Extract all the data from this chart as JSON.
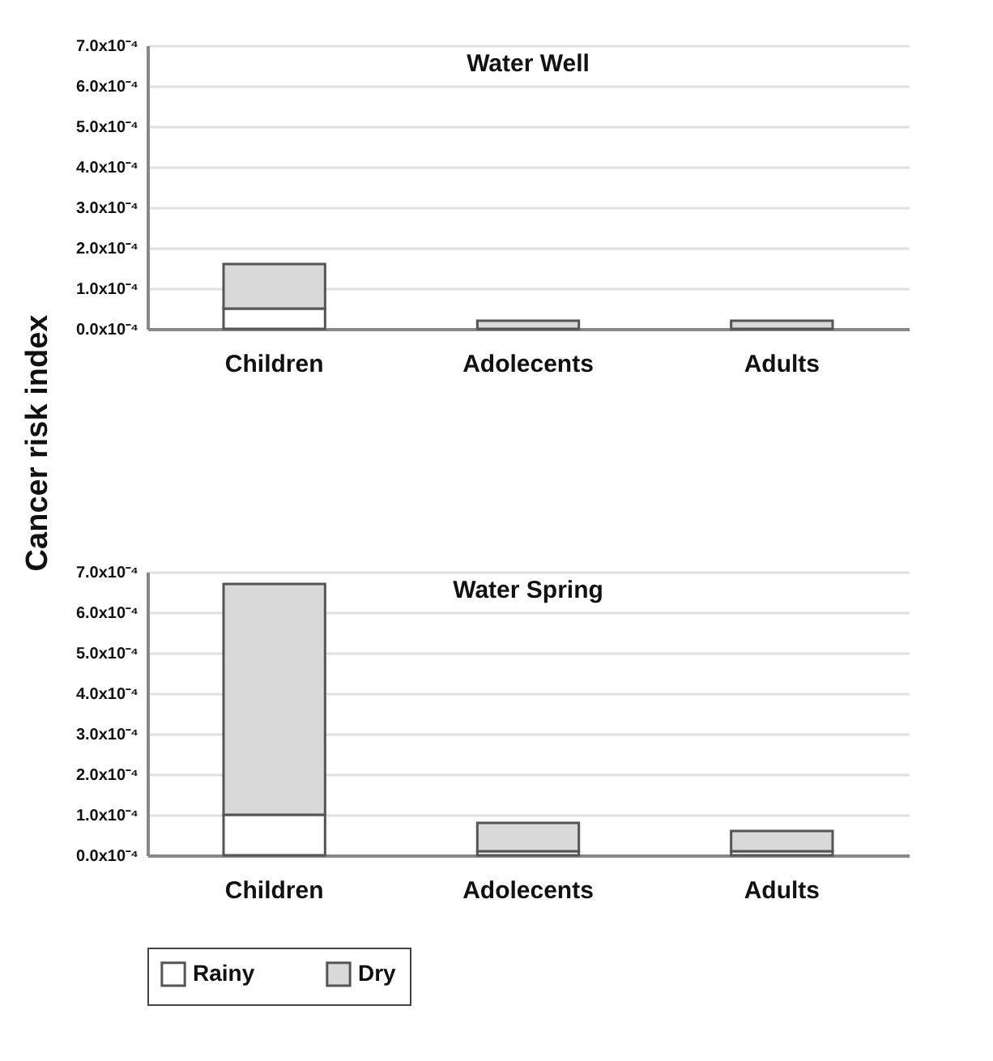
{
  "chart_data": [
    {
      "type": "bar",
      "title": "Water Well",
      "ylabel": "Cancer risk index",
      "categories": [
        "Children",
        "Adolecents",
        "Adults"
      ],
      "stacked": true,
      "grid": "y",
      "series": [
        {
          "color": "#ffffff",
          "values": [
            5e-05,
            0,
            0
          ]
        },
        {
          "color": "#d9d9d9",
          "values": [
            0.00011,
            2e-05,
            2e-05
          ]
        }
      ],
      "ylim": [
        0,
        0.0007
      ],
      "yticks": [
        {
          "value": 0,
          "label": "0.0x10⁻⁴"
        },
        {
          "value": 0.0001,
          "label": "1.0x10⁻⁴"
        },
        {
          "value": 0.0002,
          "label": "2.0x10⁻⁴"
        },
        {
          "value": 0.0003,
          "label": "3.0x10⁻⁴"
        },
        {
          "value": 0.0004,
          "label": "4.0x10⁻⁴"
        },
        {
          "value": 0.0005,
          "label": "5.0x10⁻⁴"
        },
        {
          "value": 0.0006,
          "label": "6.0x10⁻⁴"
        },
        {
          "value": 0.0007,
          "label": "7.0x10⁻⁴"
        }
      ]
    },
    {
      "type": "bar",
      "title": "Water Spring",
      "categories": [
        "Children",
        "Adolecents",
        "Adults"
      ],
      "stacked": true,
      "grid": "y",
      "legend": "bottom",
      "series": [
        {
          "name": "Rainy",
          "color": "#ffffff",
          "values": [
            0.0001,
            1e-05,
            1e-05
          ]
        },
        {
          "name": "Dry",
          "color": "#d9d9d9",
          "values": [
            0.00057,
            7e-05,
            5e-05
          ]
        }
      ],
      "ylim": [
        0,
        0.0007
      ],
      "yticks": [
        {
          "value": 0,
          "label": "0.0x10⁻⁴"
        },
        {
          "value": 0.0001,
          "label": "1.0x10⁻⁴"
        },
        {
          "value": 0.0002,
          "label": "2.0x10⁻⁴"
        },
        {
          "value": 0.0003,
          "label": "3.0x10⁻⁴"
        },
        {
          "value": 0.0004,
          "label": "4.0x10⁻⁴"
        },
        {
          "value": 0.0005,
          "label": "5.0x10⁻⁴"
        },
        {
          "value": 0.0006,
          "label": "6.0x10⁻⁴"
        },
        {
          "value": 0.0007,
          "label": "7.0x10⁻⁴"
        }
      ]
    }
  ]
}
